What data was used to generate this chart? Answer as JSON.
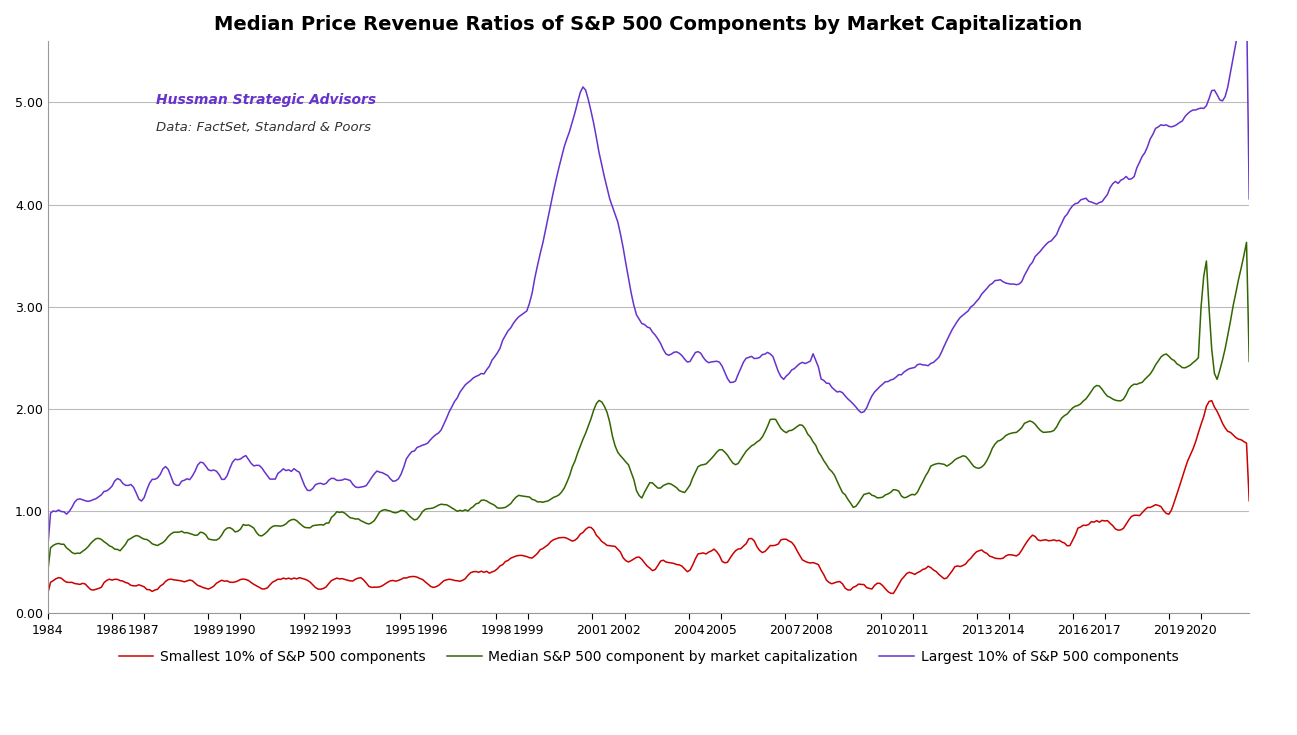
{
  "title": "Median Price Revenue Ratios of S&P 500 Components by Market Capitalization",
  "annotation_line1": "Hussman Strategic Advisors",
  "annotation_line2": "Data: FactSet, Standard & Poors",
  "ylim": [
    0.0,
    5.6
  ],
  "yticks": [
    0.0,
    1.0,
    2.0,
    3.0,
    4.0,
    5.0
  ],
  "xlim": [
    1984.0,
    2021.5
  ],
  "xtick_positions": [
    1984,
    1986,
    1987,
    1989,
    1990,
    1992,
    1993,
    1995,
    1996,
    1998,
    1999,
    2001,
    2002,
    2004,
    2005,
    2007,
    2008,
    2010,
    2011,
    2013,
    2014,
    2016,
    2017,
    2019,
    2020
  ],
  "xtick_labels": [
    "1984",
    "1986",
    "1987",
    "1989",
    "1990",
    "1992",
    "1993",
    "1995",
    "1996",
    "1998",
    "1999",
    "2001",
    "2002",
    "2004",
    "2005",
    "2007",
    "2008",
    "2010",
    "2011",
    "2013",
    "2014",
    "2016",
    "2017",
    "2019",
    "2020"
  ],
  "legend_labels": [
    "Smallest 10% of S&P 500 components",
    "Median S&P 500 component by market capitalization",
    "Largest 10% of S&P 500 components"
  ],
  "colors": {
    "red": "#cc0000",
    "green": "#336600",
    "purple": "#6633cc"
  },
  "background_color": "#ffffff",
  "title_fontsize": 14,
  "annotation_fontsize": 10,
  "tick_fontsize": 9,
  "legend_fontsize": 10
}
